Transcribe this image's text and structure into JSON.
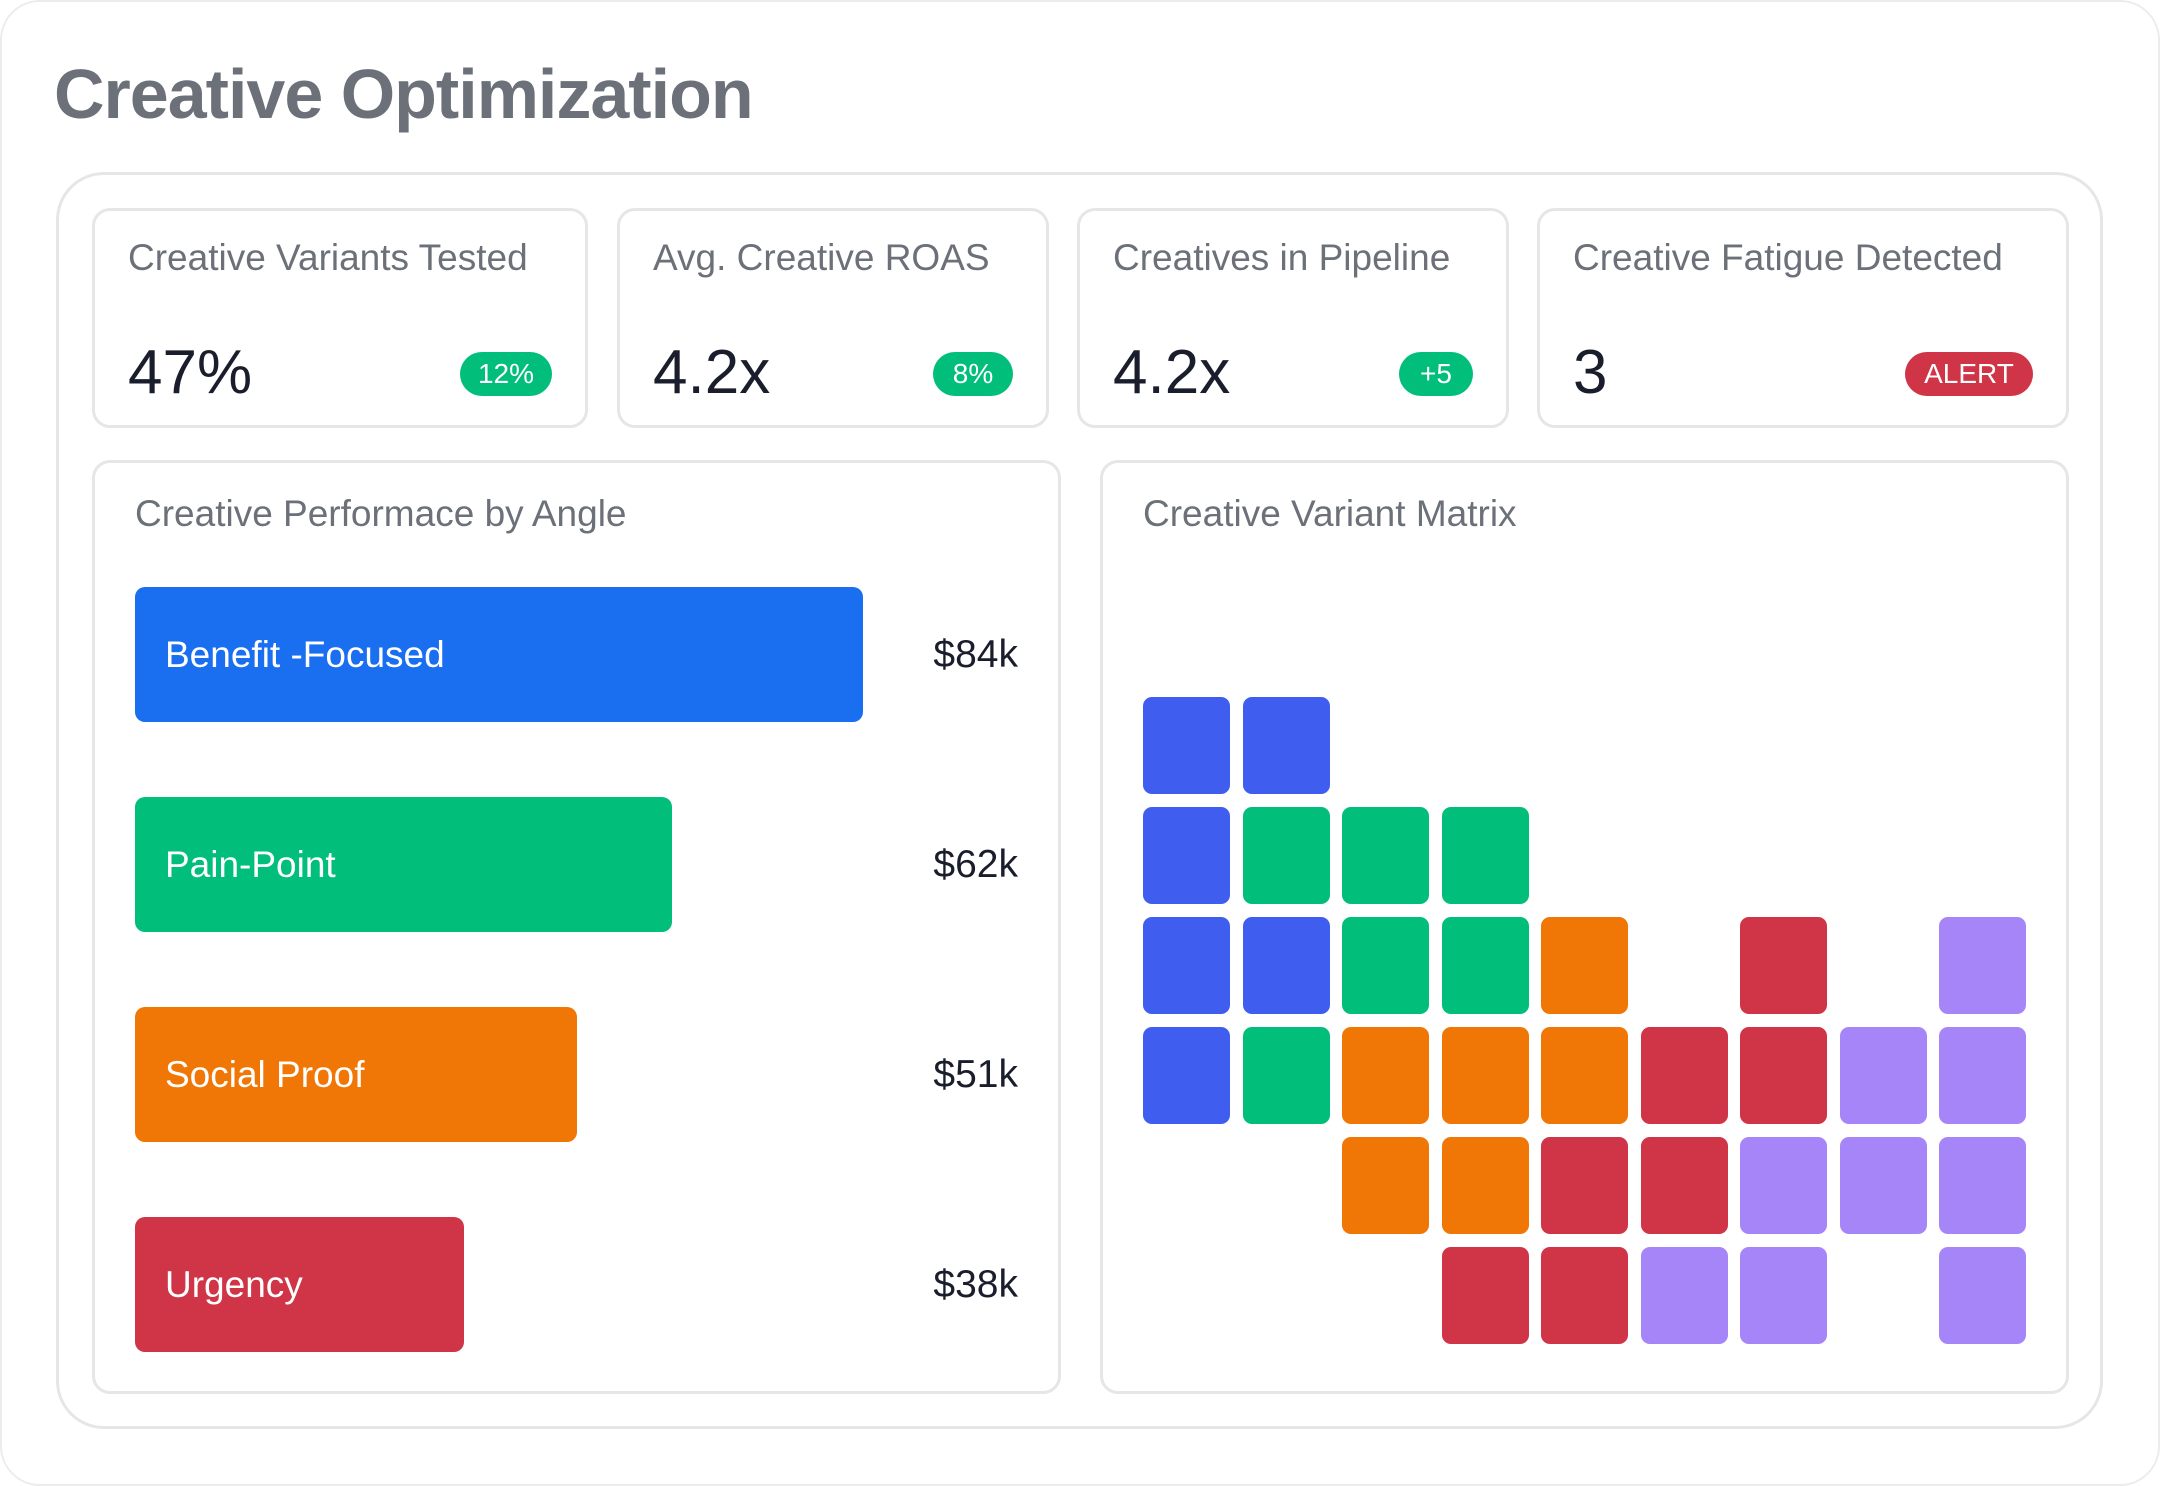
{
  "page_title": "Creative Optimization",
  "kpis": [
    {
      "label": "Creative Variants Tested",
      "value": "47%",
      "badge": "12%",
      "badge_color": "#02be7b"
    },
    {
      "label": "Avg. Creative ROAS",
      "value": "4.2x",
      "badge": "8%",
      "badge_color": "#02be7b"
    },
    {
      "label": "Creatives in Pipeline",
      "value": "4.2x",
      "badge": "+5",
      "badge_color": "#02be7b"
    },
    {
      "label": "Creative Fatigue Detected",
      "value": "3",
      "badge": "ALERT",
      "badge_color": "#cf3447"
    }
  ],
  "performance": {
    "title": "Creative Performace by Angle",
    "max_value": 84,
    "bars": [
      {
        "label": "Benefit -Focused",
        "value": 84,
        "value_label": "$84k",
        "color": "#1a6ef0"
      },
      {
        "label": "Pain-Point",
        "value": 62,
        "value_label": "$62k",
        "color": "#02be7b"
      },
      {
        "label": "Social Proof",
        "value": 51,
        "value_label": "$51k",
        "color": "#f07605"
      },
      {
        "label": "Urgency",
        "value": 38,
        "value_label": "$38k",
        "color": "#cf3447"
      }
    ]
  },
  "matrix": {
    "title": "Creative Variant Matrix",
    "colors": {
      "B": "#3f5ef0",
      "G": "#02be7b",
      "O": "#f07605",
      "R": "#cf3447",
      "P": "#a585f8"
    },
    "rows": [
      "BB.......",
      "BGGG.....",
      "BBGGO.R.P",
      "BGOOORRPP",
      "..OORRPPP",
      "...RRPP.P"
    ]
  }
}
